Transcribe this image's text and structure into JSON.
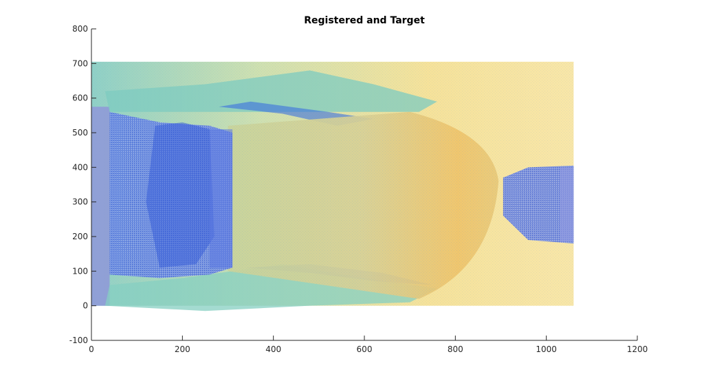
{
  "chart_data": {
    "type": "heatmap",
    "title": "Registered and Target",
    "xlabel": "",
    "ylabel": "",
    "xlim": [
      0,
      1200
    ],
    "ylim": [
      -100,
      800
    ],
    "xticks": [
      0,
      200,
      400,
      600,
      800,
      1000,
      1200
    ],
    "yticks": [
      -100,
      0,
      100,
      200,
      300,
      400,
      500,
      600,
      700,
      800
    ],
    "xtick_labels": [
      "0",
      "200",
      "400",
      "600",
      "800",
      "1000",
      "1200"
    ],
    "ytick_labels": [
      "-100",
      "0",
      "100",
      "200",
      "300",
      "400",
      "500",
      "600",
      "700",
      "800"
    ],
    "grid": false,
    "images": [
      {
        "name": "Target",
        "extent": [
          0,
          1060,
          0,
          705
        ]
      },
      {
        "name": "Registered",
        "extent": [
          30,
          1060,
          0,
          700
        ]
      }
    ],
    "colors": {
      "background_yellow": "#f6e29a",
      "body_tan": "#d9d29a",
      "overlay_blue": "#4a6fe0",
      "teal": "#6ec9c0",
      "axis": "#262626"
    }
  }
}
